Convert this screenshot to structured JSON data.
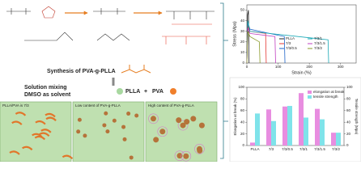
{
  "scheme": {
    "synthesis": "Synthesis of PVA-g-PLLA",
    "mixing": [
      "Solution mixing",
      "DMSO as solvent"
    ],
    "components": [
      "PLLA",
      "PVA"
    ],
    "plus": "+",
    "panels": [
      "PLLA/PVA is 7/3",
      "Low content of PVA-g-PLLA",
      "High content of PVA-g-PLLA"
    ]
  },
  "chart_data": [
    {
      "type": "line",
      "xlabel": "Strain (%)",
      "ylabel": "Stress (Mpa)",
      "xlim": [
        0,
        350
      ],
      "ylim": [
        0,
        55
      ],
      "xticks": [
        0,
        100,
        200,
        300
      ],
      "yticks": [
        0,
        10,
        20,
        30,
        40,
        50
      ],
      "series": [
        {
          "name": "PLLA",
          "color": "#222222",
          "x": [
            0,
            2,
            5,
            7
          ],
          "values": [
            0,
            45,
            50,
            0
          ]
        },
        {
          "name": "7/3",
          "color": "#e53935",
          "x": [
            0,
            3,
            10,
            60,
            62
          ],
          "values": [
            0,
            35,
            30,
            28,
            0
          ]
        },
        {
          "name": "7/3/0.5",
          "color": "#1e63c8",
          "x": [
            0,
            3,
            10,
            120,
            122
          ],
          "values": [
            0,
            38,
            32,
            25,
            0
          ]
        },
        {
          "name": "7/3/1",
          "color": "#18a7b5",
          "x": [
            0,
            3,
            10,
            260,
            262
          ],
          "values": [
            0,
            40,
            30,
            22,
            0
          ]
        },
        {
          "name": "7/3/1.5",
          "color": "#c03fc0",
          "x": [
            0,
            3,
            10,
            90,
            92
          ],
          "values": [
            0,
            33,
            28,
            25,
            0
          ]
        },
        {
          "name": "7/3/2",
          "color": "#8a9a2a",
          "x": [
            0,
            3,
            10,
            40,
            42
          ],
          "values": [
            0,
            30,
            25,
            20,
            0
          ]
        }
      ]
    },
    {
      "type": "bar",
      "ylabel": "Elongation at break (%)",
      "y2label": "Tensile strength (Mpa)",
      "categories": [
        "PLLA",
        "7/3",
        "7/3/0.5",
        "7/3/1",
        "7/3/1.5",
        "7/3/2"
      ],
      "ylim": [
        0,
        100
      ],
      "yticks": [
        0,
        20,
        40,
        60,
        80,
        100
      ],
      "y2lim": [
        0,
        100
      ],
      "y2ticks": [
        0,
        20,
        40,
        60,
        80,
        100
      ],
      "series": [
        {
          "name": "elongation at break",
          "color": "#e88de0",
          "values": [
            5,
            62,
            67,
            90,
            63,
            22
          ]
        },
        {
          "name": "tensile strength",
          "color": "#7fe3ea",
          "axis": "y2",
          "values": [
            55,
            42,
            68,
            48,
            45,
            22
          ]
        }
      ]
    }
  ]
}
